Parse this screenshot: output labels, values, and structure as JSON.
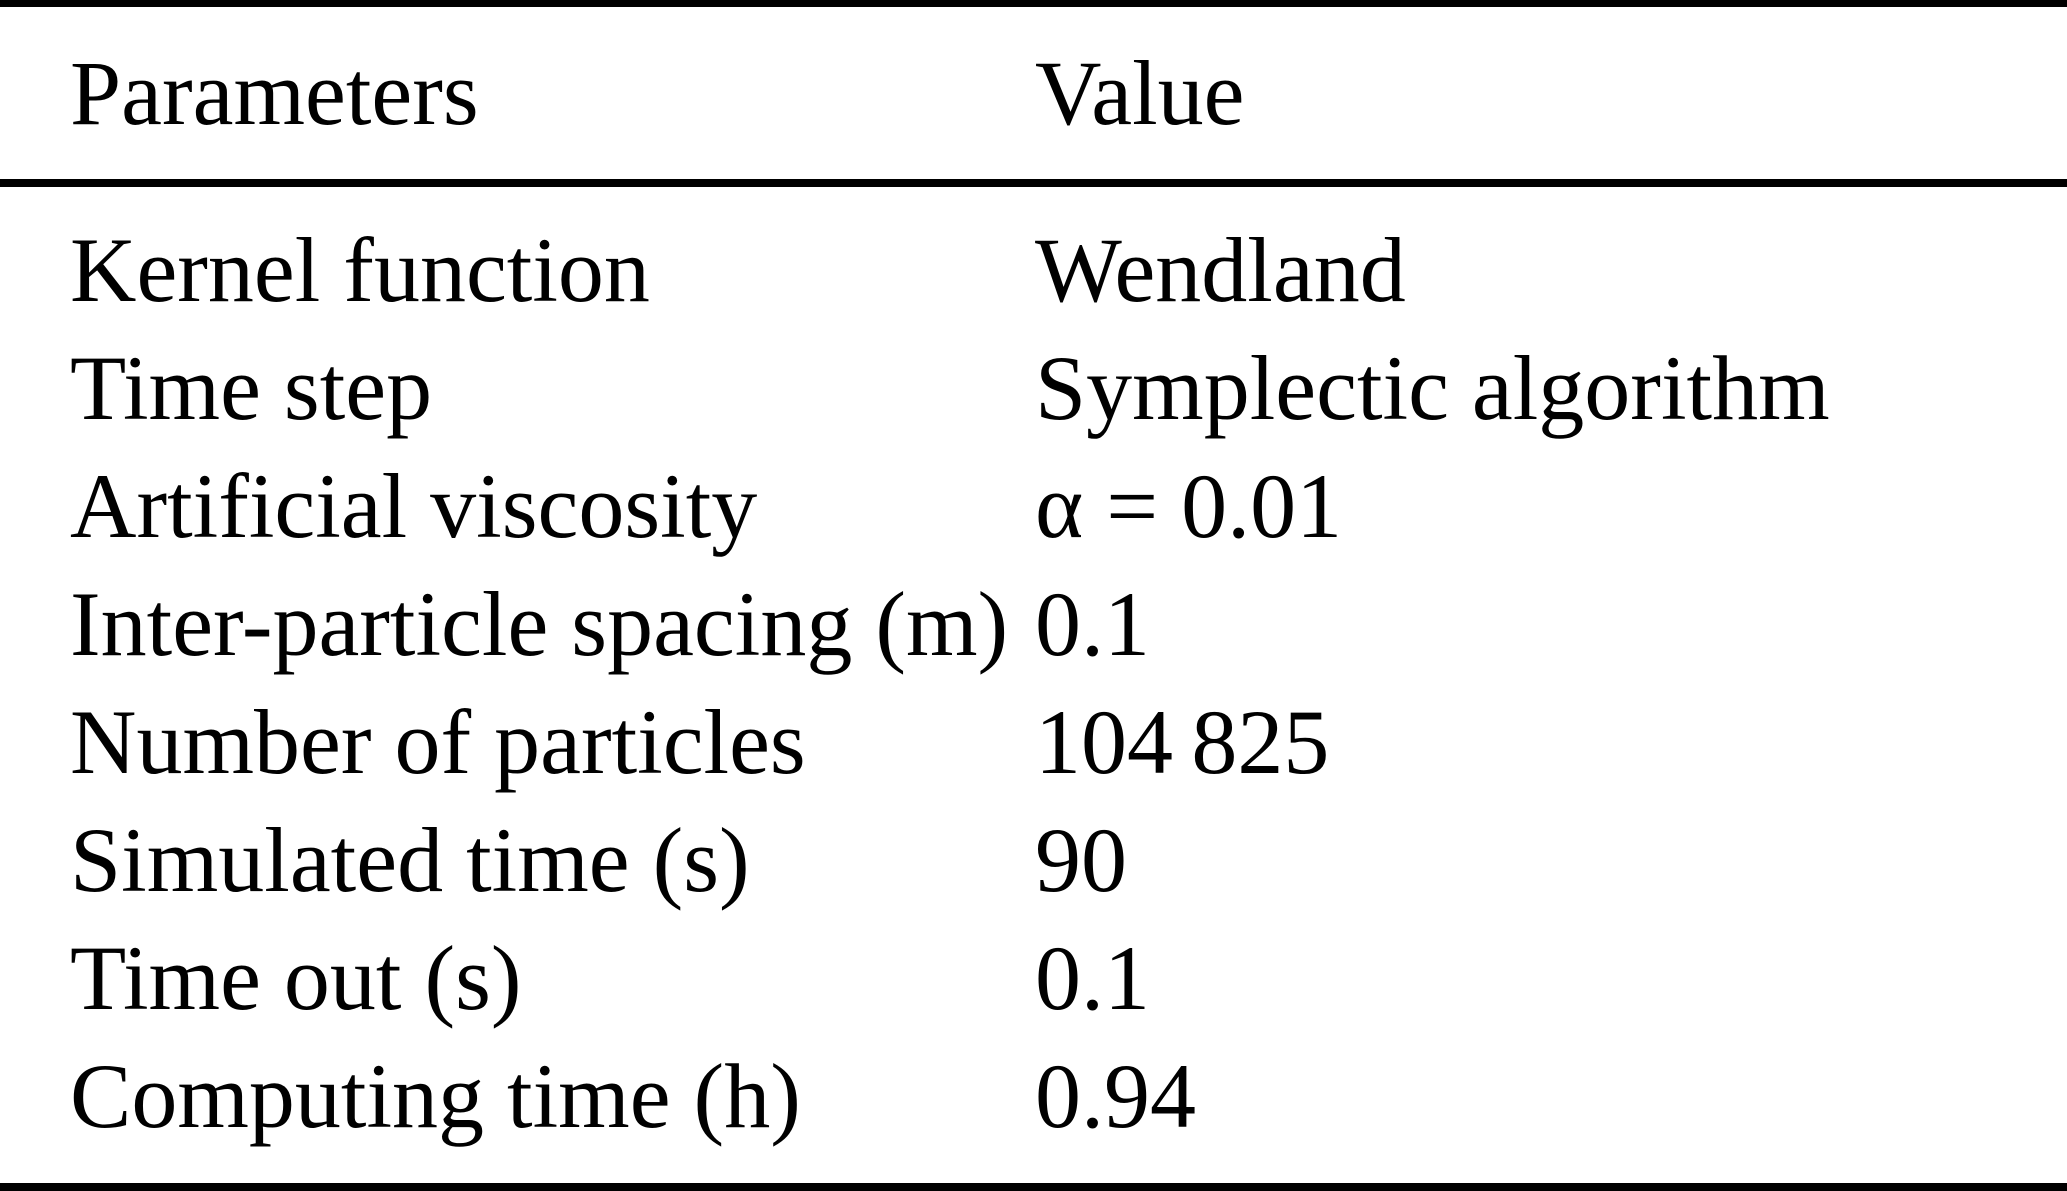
{
  "table": {
    "columns": [
      "Parameters",
      "Value"
    ],
    "rows": [
      {
        "param": "Kernel function",
        "value": "Wendland"
      },
      {
        "param": "Time step",
        "value": "Symplectic algorithm"
      },
      {
        "param": "Artificial viscosity",
        "value": "α = 0.01"
      },
      {
        "param": "Inter-particle spacing (m)",
        "value": "0.1"
      },
      {
        "param": "Number of particles",
        "value": "104 825"
      },
      {
        "param": "Simulated time (s)",
        "value": "90"
      },
      {
        "param": "Time out (s)",
        "value": "0.1"
      },
      {
        "param": "Computing time (h)",
        "value": "0.94"
      }
    ]
  },
  "colors": {
    "background": "#ffffff",
    "text": "#000000",
    "rule": "#000000"
  }
}
